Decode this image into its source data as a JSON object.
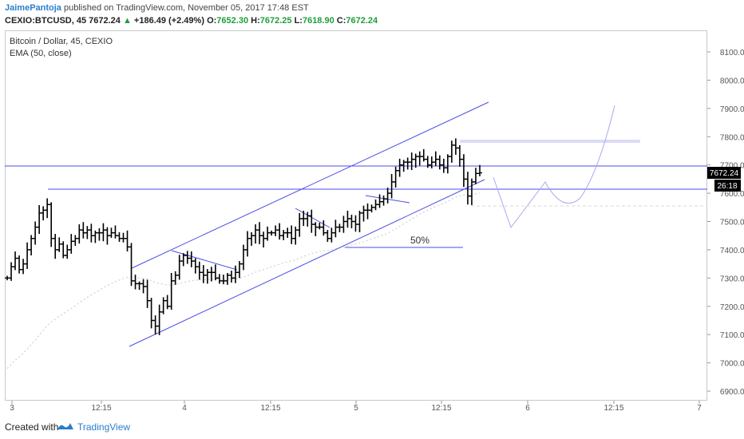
{
  "header": {
    "author": "JaimePantoja",
    "published_text": "published on TradingView.com, November 05, 2017 17:48 EST",
    "symbol": "CEXIO:BTCUSD, 45",
    "last": "7672.24",
    "change_arrow": "▲",
    "change": "+186.49 (+2.49%)",
    "o_label": "O:",
    "o_value": "7652.30",
    "h_label": "H:",
    "h_value": "7672.25",
    "l_label": "L:",
    "l_value": "7618.90",
    "c_label": "C:",
    "c_value": "7672.24"
  },
  "legend": {
    "title": "Bitcoin / Dollar, 45, CEXIO",
    "indicator": "EMA (50, close)"
  },
  "footer": {
    "created_with": "Created with",
    "brand": "TradingView"
  },
  "colors": {
    "candle": "#000000",
    "drawing": "#4b4ee6",
    "projection": "#a9a9f2",
    "band": "#dcdcf8",
    "ema": "#d3cfcf",
    "price_label_bg": "#000000",
    "green": "#1e9e3a",
    "brand": "#2a7ecb"
  },
  "chart_data": {
    "type": "ohlc",
    "ylim": [
      6860,
      8150
    ],
    "y_ticks": [
      "6900.00",
      "7000.00",
      "7100.00",
      "7200.00",
      "7300.00",
      "7400.00",
      "7500.00",
      "7600.00",
      "7700.00",
      "7800.00",
      "7900.00",
      "8000.00",
      "8100.00"
    ],
    "x_ticks": [
      "3",
      "12:15",
      "4",
      "12:15",
      "5",
      "12:15",
      "6",
      "12:15",
      "7"
    ],
    "last_price_label": "7672.24",
    "countdown_label": "26:18",
    "fib_label": "50%",
    "close_series": [
      7300,
      7340,
      7370,
      7330,
      7350,
      7400,
      7440,
      7480,
      7530,
      7540,
      7560,
      7440,
      7400,
      7420,
      7380,
      7400,
      7430,
      7440,
      7470,
      7460,
      7470,
      7450,
      7460,
      7460,
      7470,
      7450,
      7460,
      7450,
      7440,
      7440,
      7410,
      7290,
      7280,
      7280,
      7270,
      7220,
      7150,
      7130,
      7180,
      7220,
      7200,
      7290,
      7310,
      7360,
      7380,
      7370,
      7360,
      7340,
      7320,
      7310,
      7320,
      7320,
      7300,
      7290,
      7290,
      7310,
      7300,
      7320,
      7350,
      7400,
      7440,
      7450,
      7470,
      7450,
      7440,
      7460,
      7460,
      7470,
      7450,
      7460,
      7460,
      7440,
      7470,
      7510,
      7510,
      7520,
      7490,
      7480,
      7480,
      7460,
      7440,
      7460,
      7480,
      7480,
      7500,
      7510,
      7500,
      7490,
      7530,
      7540,
      7540,
      7550,
      7560,
      7570,
      7580,
      7600,
      7640,
      7680,
      7700,
      7710,
      7710,
      7720,
      7730,
      7730,
      7720,
      7700,
      7710,
      7720,
      7700,
      7690,
      7730,
      7770,
      7760,
      7720,
      7650,
      7590,
      7640,
      7670,
      7672
    ]
  }
}
